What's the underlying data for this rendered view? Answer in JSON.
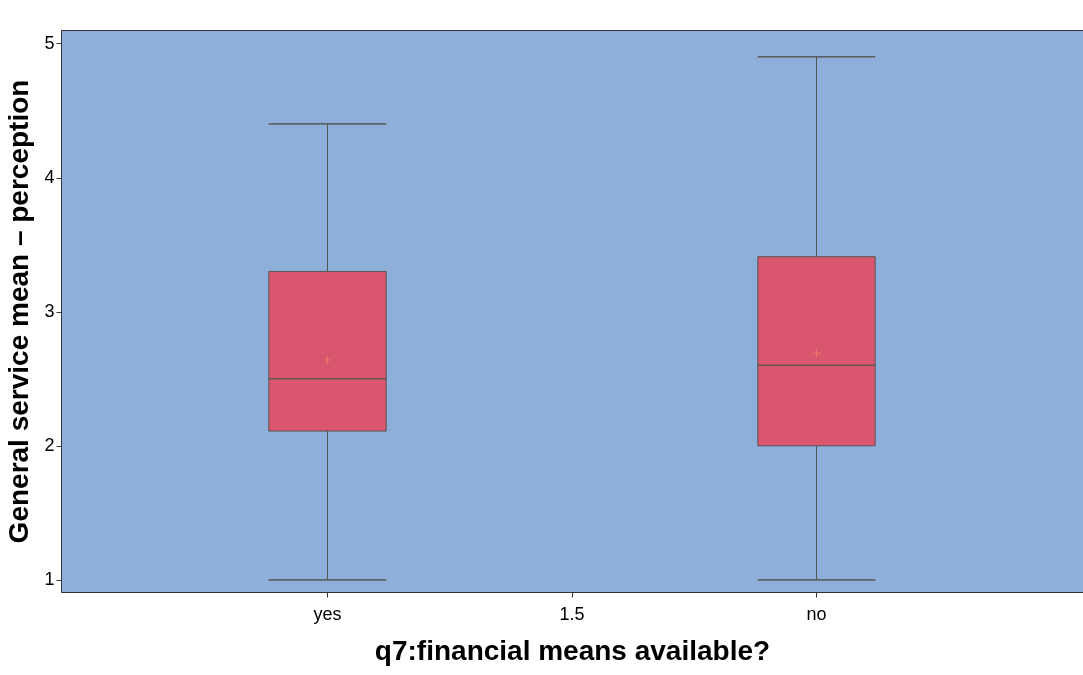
{
  "chart_data": {
    "type": "box",
    "xlabel": "q7:financial means available?",
    "ylabel": "General service mean – perception",
    "categories": [
      "yes",
      "1.5",
      "no"
    ],
    "ylim": [
      0.91,
      5.1
    ],
    "yticks": [
      1,
      2,
      3,
      4,
      5
    ],
    "series": [
      {
        "color": "#d9566e",
        "boxes": [
          {
            "low": 1.0,
            "q1": 2.11,
            "median": 2.5,
            "q3": 3.3,
            "high": 4.4,
            "mean": 2.64
          },
          null,
          {
            "low": 1.0,
            "q1": 2.0,
            "median": 2.6,
            "q3": 3.41,
            "high": 4.9,
            "mean": 2.69
          }
        ]
      }
    ],
    "grid": false,
    "legend": false
  }
}
